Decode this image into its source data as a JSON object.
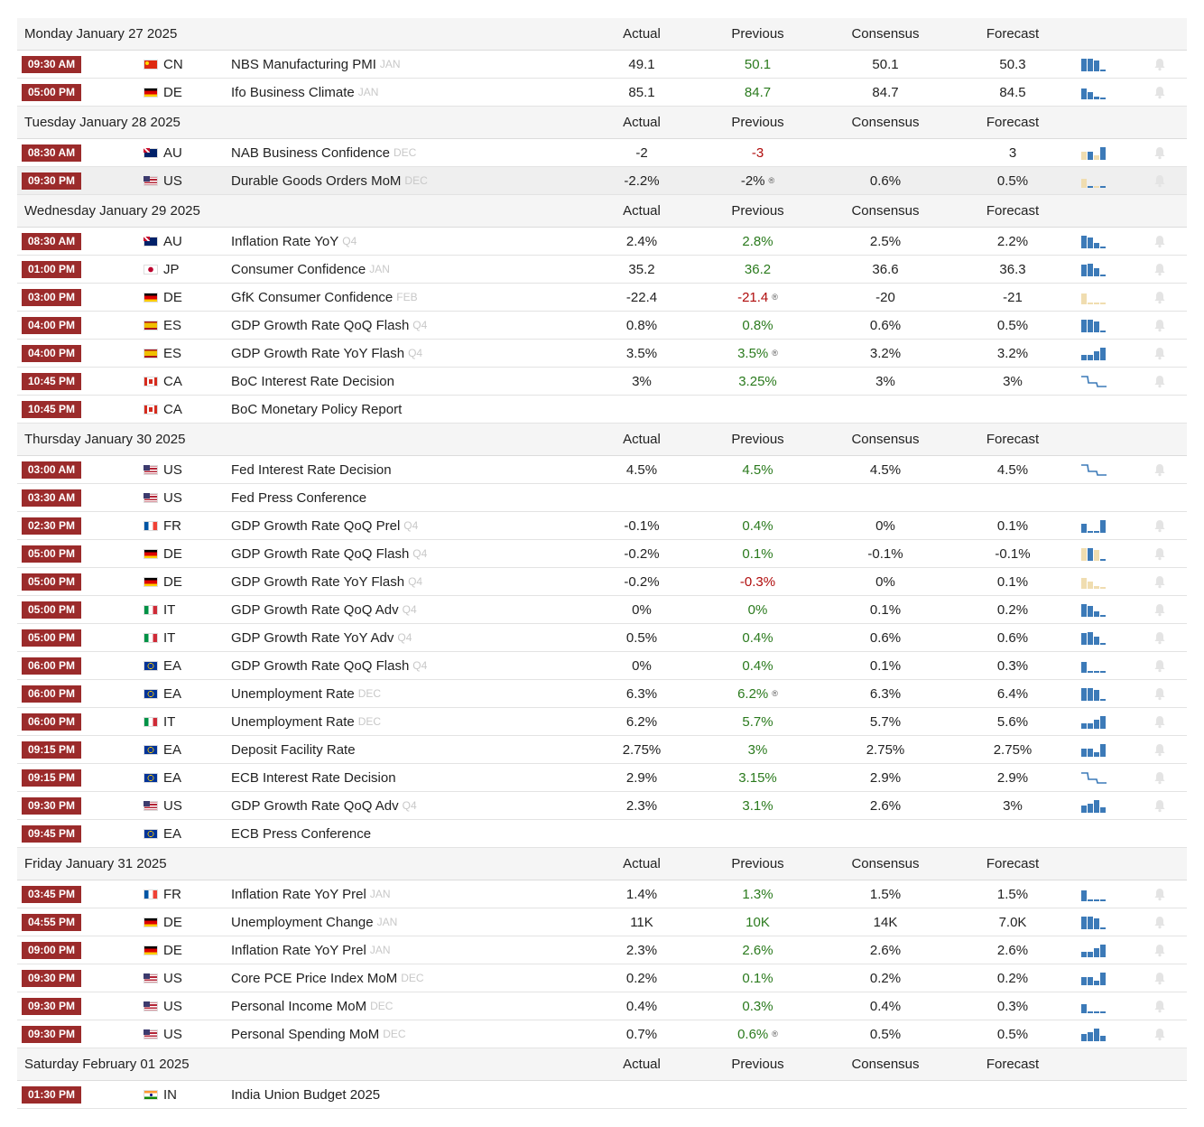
{
  "column_headers": {
    "actual": "Actual",
    "previous": "Previous",
    "consensus": "Consensus",
    "forecast": "Forecast"
  },
  "colors": {
    "time_badge": "#9b2b2b",
    "positive": "#2a7a1d",
    "negative": "#b00c0c",
    "spark_blue": "#3c7ab8",
    "spark_tan": "#f0ddb0"
  },
  "days": [
    {
      "date": "Monday January 27 2025",
      "events": [
        {
          "time": "09:30 AM",
          "flag": "cn",
          "country": "CN",
          "event": "NBS Manufacturing PMI",
          "ref": "JAN",
          "actual": "49.1",
          "previous": "50.1",
          "previous_dir": "pos",
          "revised": false,
          "consensus": "50.1",
          "forecast": "50.3",
          "spark": "blue"
        },
        {
          "time": "05:00 PM",
          "flag": "de",
          "country": "DE",
          "event": "Ifo Business Climate",
          "ref": "JAN",
          "actual": "85.1",
          "previous": "84.7",
          "previous_dir": "pos",
          "revised": false,
          "consensus": "84.7",
          "forecast": "84.5",
          "spark": "blue"
        }
      ]
    },
    {
      "date": "Tuesday January 28 2025",
      "events": [
        {
          "time": "08:30 AM",
          "flag": "au",
          "country": "AU",
          "event": "NAB Business Confidence",
          "ref": "DEC",
          "actual": "-2",
          "previous": "-3",
          "previous_dir": "neg",
          "revised": false,
          "consensus": "",
          "forecast": "3",
          "spark": "mixed"
        },
        {
          "time": "09:30 PM",
          "flag": "us",
          "country": "US",
          "event": "Durable Goods Orders MoM",
          "ref": "DEC",
          "actual": "-2.2%",
          "previous": "-2%",
          "previous_dir": "",
          "revised": true,
          "consensus": "0.6%",
          "forecast": "0.5%",
          "spark": "mixed",
          "highlight": true
        }
      ]
    },
    {
      "date": "Wednesday January 29 2025",
      "events": [
        {
          "time": "08:30 AM",
          "flag": "au",
          "country": "AU",
          "event": "Inflation Rate YoY",
          "ref": "Q4",
          "actual": "2.4%",
          "previous": "2.8%",
          "previous_dir": "pos",
          "revised": false,
          "consensus": "2.5%",
          "forecast": "2.2%",
          "spark": "blue"
        },
        {
          "time": "01:00 PM",
          "flag": "jp",
          "country": "JP",
          "event": "Consumer Confidence",
          "ref": "JAN",
          "actual": "35.2",
          "previous": "36.2",
          "previous_dir": "pos",
          "revised": false,
          "consensus": "36.6",
          "forecast": "36.3",
          "spark": "blue"
        },
        {
          "time": "03:00 PM",
          "flag": "de",
          "country": "DE",
          "event": "GfK Consumer Confidence",
          "ref": "FEB",
          "actual": "-22.4",
          "previous": "-21.4",
          "previous_dir": "neg",
          "revised": true,
          "consensus": "-20",
          "forecast": "-21",
          "spark": "tan"
        },
        {
          "time": "04:00 PM",
          "flag": "es",
          "country": "ES",
          "event": "GDP Growth Rate QoQ Flash",
          "ref": "Q4",
          "actual": "0.8%",
          "previous": "0.8%",
          "previous_dir": "pos",
          "revised": false,
          "consensus": "0.6%",
          "forecast": "0.5%",
          "spark": "blue"
        },
        {
          "time": "04:00 PM",
          "flag": "es",
          "country": "ES",
          "event": "GDP Growth Rate YoY Flash",
          "ref": "Q4",
          "actual": "3.5%",
          "previous": "3.5%",
          "previous_dir": "pos",
          "revised": true,
          "consensus": "3.2%",
          "forecast": "3.2%",
          "spark": "blue"
        },
        {
          "time": "10:45 PM",
          "flag": "ca",
          "country": "CA",
          "event": "BoC Interest Rate Decision",
          "ref": "",
          "actual": "3%",
          "previous": "3.25%",
          "previous_dir": "pos",
          "revised": false,
          "consensus": "3%",
          "forecast": "3%",
          "spark": "line"
        },
        {
          "time": "10:45 PM",
          "flag": "ca",
          "country": "CA",
          "event": "BoC Monetary Policy Report",
          "ref": "",
          "actual": "",
          "previous": "",
          "previous_dir": "",
          "revised": false,
          "consensus": "",
          "forecast": "",
          "spark": "none"
        }
      ]
    },
    {
      "date": "Thursday January 30 2025",
      "events": [
        {
          "time": "03:00 AM",
          "flag": "us",
          "country": "US",
          "event": "Fed Interest Rate Decision",
          "ref": "",
          "actual": "4.5%",
          "previous": "4.5%",
          "previous_dir": "pos",
          "revised": false,
          "consensus": "4.5%",
          "forecast": "4.5%",
          "spark": "line"
        },
        {
          "time": "03:30 AM",
          "flag": "us",
          "country": "US",
          "event": "Fed Press Conference",
          "ref": "",
          "actual": "",
          "previous": "",
          "previous_dir": "",
          "revised": false,
          "consensus": "",
          "forecast": "",
          "spark": "none"
        },
        {
          "time": "02:30 PM",
          "flag": "fr",
          "country": "FR",
          "event": "GDP Growth Rate QoQ Prel",
          "ref": "Q4",
          "actual": "-0.1%",
          "previous": "0.4%",
          "previous_dir": "pos",
          "revised": false,
          "consensus": "0%",
          "forecast": "0.1%",
          "spark": "blue"
        },
        {
          "time": "05:00 PM",
          "flag": "de",
          "country": "DE",
          "event": "GDP Growth Rate QoQ Flash",
          "ref": "Q4",
          "actual": "-0.2%",
          "previous": "0.1%",
          "previous_dir": "pos",
          "revised": false,
          "consensus": "-0.1%",
          "forecast": "-0.1%",
          "spark": "mixed"
        },
        {
          "time": "05:00 PM",
          "flag": "de",
          "country": "DE",
          "event": "GDP Growth Rate YoY Flash",
          "ref": "Q4",
          "actual": "-0.2%",
          "previous": "-0.3%",
          "previous_dir": "neg",
          "revised": false,
          "consensus": "0%",
          "forecast": "0.1%",
          "spark": "tan"
        },
        {
          "time": "05:00 PM",
          "flag": "it",
          "country": "IT",
          "event": "GDP Growth Rate QoQ Adv",
          "ref": "Q4",
          "actual": "0%",
          "previous": "0%",
          "previous_dir": "pos",
          "revised": false,
          "consensus": "0.1%",
          "forecast": "0.2%",
          "spark": "blue"
        },
        {
          "time": "05:00 PM",
          "flag": "it",
          "country": "IT",
          "event": "GDP Growth Rate YoY Adv",
          "ref": "Q4",
          "actual": "0.5%",
          "previous": "0.4%",
          "previous_dir": "pos",
          "revised": false,
          "consensus": "0.6%",
          "forecast": "0.6%",
          "spark": "blue"
        },
        {
          "time": "06:00 PM",
          "flag": "ea",
          "country": "EA",
          "event": "GDP Growth Rate QoQ Flash",
          "ref": "Q4",
          "actual": "0%",
          "previous": "0.4%",
          "previous_dir": "pos",
          "revised": false,
          "consensus": "0.1%",
          "forecast": "0.3%",
          "spark": "blue"
        },
        {
          "time": "06:00 PM",
          "flag": "ea",
          "country": "EA",
          "event": "Unemployment Rate",
          "ref": "DEC",
          "actual": "6.3%",
          "previous": "6.2%",
          "previous_dir": "pos",
          "revised": true,
          "consensus": "6.3%",
          "forecast": "6.4%",
          "spark": "blue"
        },
        {
          "time": "06:00 PM",
          "flag": "it",
          "country": "IT",
          "event": "Unemployment Rate",
          "ref": "DEC",
          "actual": "6.2%",
          "previous": "5.7%",
          "previous_dir": "pos",
          "revised": false,
          "consensus": "5.7%",
          "forecast": "5.6%",
          "spark": "blue"
        },
        {
          "time": "09:15 PM",
          "flag": "ea",
          "country": "EA",
          "event": "Deposit Facility Rate",
          "ref": "",
          "actual": "2.75%",
          "previous": "3%",
          "previous_dir": "pos",
          "revised": false,
          "consensus": "2.75%",
          "forecast": "2.75%",
          "spark": "blue"
        },
        {
          "time": "09:15 PM",
          "flag": "ea",
          "country": "EA",
          "event": "ECB Interest Rate Decision",
          "ref": "",
          "actual": "2.9%",
          "previous": "3.15%",
          "previous_dir": "pos",
          "revised": false,
          "consensus": "2.9%",
          "forecast": "2.9%",
          "spark": "line"
        },
        {
          "time": "09:30 PM",
          "flag": "us",
          "country": "US",
          "event": "GDP Growth Rate QoQ Adv",
          "ref": "Q4",
          "actual": "2.3%",
          "previous": "3.1%",
          "previous_dir": "pos",
          "revised": false,
          "consensus": "2.6%",
          "forecast": "3%",
          "spark": "blue"
        },
        {
          "time": "09:45 PM",
          "flag": "ea",
          "country": "EA",
          "event": "ECB Press Conference",
          "ref": "",
          "actual": "",
          "previous": "",
          "previous_dir": "",
          "revised": false,
          "consensus": "",
          "forecast": "",
          "spark": "none"
        }
      ]
    },
    {
      "date": "Friday January 31 2025",
      "events": [
        {
          "time": "03:45 PM",
          "flag": "fr",
          "country": "FR",
          "event": "Inflation Rate YoY Prel",
          "ref": "JAN",
          "actual": "1.4%",
          "previous": "1.3%",
          "previous_dir": "pos",
          "revised": false,
          "consensus": "1.5%",
          "forecast": "1.5%",
          "spark": "blue"
        },
        {
          "time": "04:55 PM",
          "flag": "de",
          "country": "DE",
          "event": "Unemployment Change",
          "ref": "JAN",
          "actual": "11K",
          "previous": "10K",
          "previous_dir": "pos",
          "revised": false,
          "consensus": "14K",
          "forecast": "7.0K",
          "spark": "blue"
        },
        {
          "time": "09:00 PM",
          "flag": "de",
          "country": "DE",
          "event": "Inflation Rate YoY Prel",
          "ref": "JAN",
          "actual": "2.3%",
          "previous": "2.6%",
          "previous_dir": "pos",
          "revised": false,
          "consensus": "2.6%",
          "forecast": "2.6%",
          "spark": "blue"
        },
        {
          "time": "09:30 PM",
          "flag": "us",
          "country": "US",
          "event": "Core PCE Price Index MoM",
          "ref": "DEC",
          "actual": "0.2%",
          "previous": "0.1%",
          "previous_dir": "pos",
          "revised": false,
          "consensus": "0.2%",
          "forecast": "0.2%",
          "spark": "blue"
        },
        {
          "time": "09:30 PM",
          "flag": "us",
          "country": "US",
          "event": "Personal Income MoM",
          "ref": "DEC",
          "actual": "0.4%",
          "previous": "0.3%",
          "previous_dir": "pos",
          "revised": false,
          "consensus": "0.4%",
          "forecast": "0.3%",
          "spark": "blue"
        },
        {
          "time": "09:30 PM",
          "flag": "us",
          "country": "US",
          "event": "Personal Spending MoM",
          "ref": "DEC",
          "actual": "0.7%",
          "previous": "0.6%",
          "previous_dir": "pos",
          "revised": true,
          "consensus": "0.5%",
          "forecast": "0.5%",
          "spark": "blue"
        }
      ]
    },
    {
      "date": "Saturday February 01 2025",
      "events": [
        {
          "time": "01:30 PM",
          "flag": "in",
          "country": "IN",
          "event": "India Union Budget 2025",
          "ref": "",
          "actual": "",
          "previous": "",
          "previous_dir": "",
          "revised": false,
          "consensus": "",
          "forecast": "",
          "spark": "none"
        }
      ]
    }
  ]
}
